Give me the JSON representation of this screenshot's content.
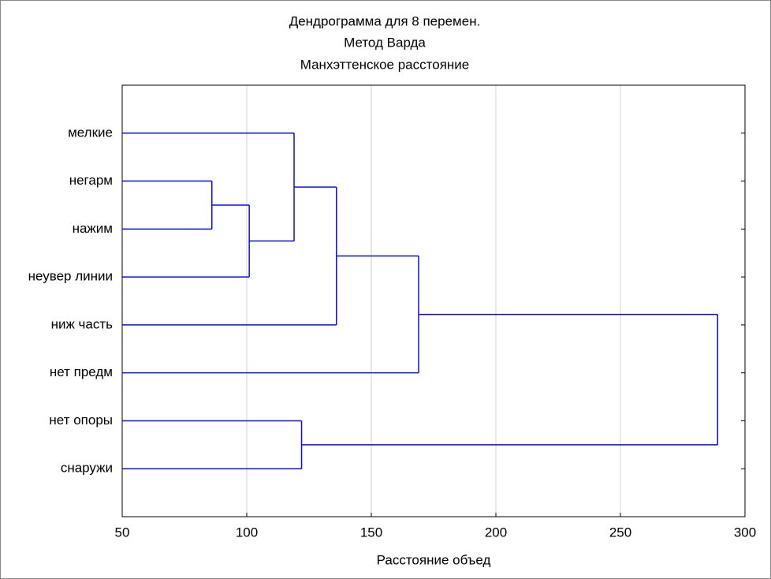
{
  "chart_data": {
    "type": "dendrogram",
    "title": [
      "Дендрограмма для 8   перемен.",
      "Метод Варда",
      "Манхэттенское расстояние"
    ],
    "x_label": "Расстояние объед",
    "categories": [
      "мелкие",
      "негарм",
      "нажим",
      "неувер линии",
      "ниж часть",
      "нет предм",
      "нет опоры",
      "снаружи"
    ],
    "merges": [
      {
        "left": 1,
        "right": 2,
        "height": 86
      },
      {
        "left": 8,
        "right": 3,
        "height": 101
      },
      {
        "left": 0,
        "right": 9,
        "height": 119
      },
      {
        "left": 10,
        "right": 4,
        "height": 136
      },
      {
        "left": 11,
        "right": 5,
        "height": 169
      },
      {
        "left": 6,
        "right": 7,
        "height": 122
      },
      {
        "left": 12,
        "right": 13,
        "height": 289
      }
    ],
    "color": "#1010d0",
    "xlim": [
      50,
      300
    ],
    "xticks": [
      50,
      100,
      150,
      200,
      250,
      300
    ],
    "grid": true
  }
}
